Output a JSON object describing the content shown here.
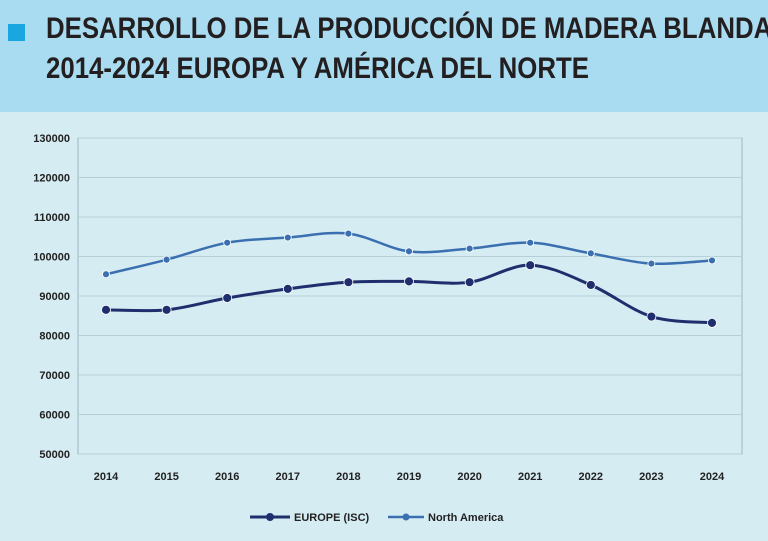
{
  "header": {
    "title_line1": "DESARROLLO DE LA PRODUCCIÓN DE MADERA BLANDA",
    "title_line2": "2014-2024 EUROPA Y AMÉRICA DEL NORTE"
  },
  "colors": {
    "header_bg": "#a9dcf1",
    "accent_square": "#1aa7e0",
    "plot_bg": "#d6ecf3",
    "europe": "#1f2f6e",
    "north_america": "#3a6fb0"
  },
  "chart_data": {
    "type": "line",
    "title": "",
    "xlabel": "",
    "ylabel": "",
    "categories": [
      "2014",
      "2015",
      "2016",
      "2017",
      "2018",
      "2019",
      "2020",
      "2021",
      "2022",
      "2023",
      "2024"
    ],
    "ylim": [
      50000,
      130000
    ],
    "yticks": [
      "130000",
      "120000",
      "110000",
      "100000",
      "90000",
      "80000",
      "70000",
      "60000",
      "50000"
    ],
    "grid": true,
    "legend_position": "bottom",
    "series": [
      {
        "name": "EUROPE (ISC)",
        "color": "#1f2f6e",
        "values": [
          86500,
          86500,
          89500,
          91800,
          93500,
          93700,
          93500,
          97800,
          92800,
          84800,
          83200
        ]
      },
      {
        "name": "North America",
        "color": "#3a6fb0",
        "values": [
          95500,
          99200,
          103500,
          104800,
          105800,
          101300,
          102000,
          103500,
          100800,
          98200,
          99000
        ]
      }
    ]
  }
}
